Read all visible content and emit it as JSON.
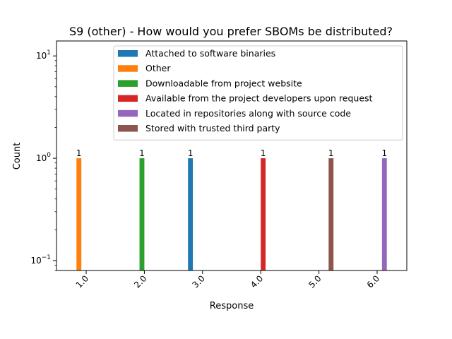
{
  "chart_data": {
    "type": "bar",
    "title": "S9 (other) - How would you prefer SBOMs be distributed?",
    "xlabel": "Response",
    "ylabel": "Count",
    "yscale": "log",
    "ylim": [
      0.08,
      14
    ],
    "yticks": [
      {
        "value": 0.1,
        "base": "10",
        "exp": "−1"
      },
      {
        "value": 1,
        "base": "10",
        "exp": "0"
      },
      {
        "value": 10,
        "base": "10",
        "exp": "1"
      }
    ],
    "categories": [
      "1.0",
      "2.0",
      "3.0",
      "4.0",
      "5.0",
      "6.0"
    ],
    "grid": false,
    "legend_position": "top-right",
    "series": [
      {
        "name": "Attached to software binaries",
        "color": "#1f77b4",
        "values": [
          0,
          0,
          1,
          0,
          0,
          0
        ],
        "labels": [
          "",
          "",
          "1",
          "",
          "",
          ""
        ]
      },
      {
        "name": "Other",
        "color": "#ff7f0e",
        "values": [
          1,
          0,
          0,
          0,
          0,
          0
        ],
        "labels": [
          "1",
          "",
          "",
          "",
          "",
          ""
        ]
      },
      {
        "name": "Downloadable from project website",
        "color": "#2ca02c",
        "values": [
          0,
          1,
          0,
          0,
          0,
          0
        ],
        "labels": [
          "",
          "1",
          "",
          "",
          "",
          ""
        ]
      },
      {
        "name": "Available from the project developers upon request",
        "color": "#d62728",
        "values": [
          0,
          0,
          0,
          1,
          0,
          0
        ],
        "labels": [
          "",
          "",
          "",
          "1",
          "",
          ""
        ]
      },
      {
        "name": "Located in repositories along with source code",
        "color": "#9467bd",
        "values": [
          0,
          0,
          0,
          0,
          0,
          1
        ],
        "labels": [
          "",
          "",
          "",
          "",
          "",
          "1"
        ]
      },
      {
        "name": "Stored with trusted third party",
        "color": "#8c564b",
        "values": [
          0,
          0,
          0,
          0,
          1,
          0
        ],
        "labels": [
          "",
          "",
          "",
          "",
          "1",
          ""
        ]
      }
    ]
  }
}
